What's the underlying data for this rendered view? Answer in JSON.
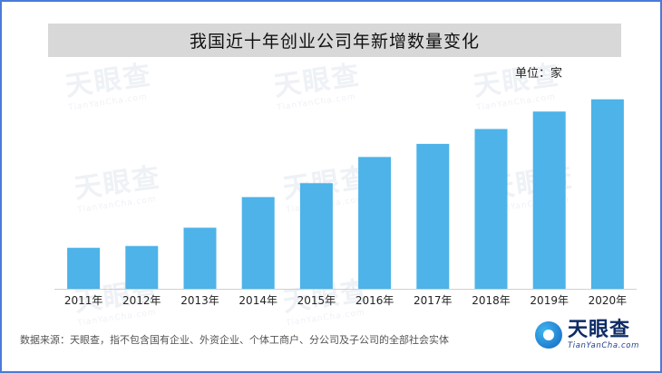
{
  "chart_data": {
    "type": "bar",
    "title": "我国近十年创业公司年新增数量变化",
    "unit_label": "单位：家",
    "categories": [
      "2011年",
      "2012年",
      "2013年",
      "2014年",
      "2015年",
      "2016年",
      "2017年",
      "2018年",
      "2019年",
      "2020年"
    ],
    "values": [
      47,
      49,
      70,
      105,
      121,
      151,
      166,
      183,
      203,
      217
    ],
    "ylim": [
      0,
      225
    ],
    "bar_color": "#4db3e8",
    "grid": false,
    "legend": "none"
  },
  "footer": {
    "source": "数据来源：天眼查，指不包含国有企业、外资企业、个体工商户、分公司及子公司的全部社会实体"
  },
  "brand": {
    "name": "天眼查",
    "url": "TianYanCha.com"
  },
  "colors": {
    "frame": "#4a7bd8",
    "title_bar": "#d8d8d8",
    "bar": "#4db3e8"
  }
}
